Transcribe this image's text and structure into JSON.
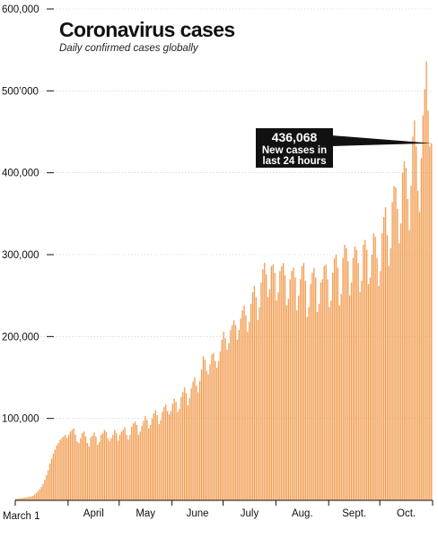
{
  "chart_data": {
    "type": "bar",
    "title": "Coronavirus cases",
    "subtitle": "Daily confirmed cases globally",
    "start_label": "March 1",
    "month_labels": [
      "April",
      "May",
      "June",
      "July",
      "Aug.",
      "Sept.",
      "Oct."
    ],
    "y_ticks": [
      {
        "value": 100000,
        "label": "100,000"
      },
      {
        "value": 200000,
        "label": "200,000"
      },
      {
        "value": 300000,
        "label": "300,000"
      },
      {
        "value": 400000,
        "label": "400,000"
      },
      {
        "value": 500000,
        "label": "500’000"
      },
      {
        "value": 600000,
        "label": "600,000"
      }
    ],
    "ylim": [
      0,
      600000
    ],
    "bar_color": "#f2a057",
    "callout": {
      "value": "436,068",
      "line1": "New cases in",
      "line2": "last 24 hours",
      "point_value": 436068
    },
    "values": [
      2000,
      2200,
      2500,
      2400,
      3000,
      3200,
      3600,
      3900,
      4500,
      4800,
      5500,
      7000,
      9000,
      11000,
      13500,
      16500,
      20000,
      25000,
      31000,
      37000,
      45000,
      51000,
      57000,
      62000,
      67000,
      70000,
      74000,
      76000,
      78000,
      80000,
      76000,
      80000,
      84000,
      86000,
      88000,
      80000,
      72000,
      70000,
      76000,
      82000,
      84000,
      78000,
      70000,
      66000,
      77000,
      79000,
      83000,
      78000,
      68000,
      71000,
      80000,
      82000,
      86000,
      84000,
      76000,
      72000,
      76000,
      80000,
      86000,
      82000,
      73000,
      80000,
      84000,
      86000,
      89000,
      80000,
      74000,
      80000,
      90000,
      94000,
      96000,
      92000,
      80000,
      84000,
      91000,
      97000,
      103000,
      98000,
      88000,
      92000,
      100000,
      106000,
      110000,
      104000,
      93000,
      98000,
      108000,
      114000,
      117000,
      109000,
      105000,
      109000,
      118000,
      124000,
      120000,
      108000,
      112000,
      126000,
      132000,
      138000,
      131000,
      116000,
      125000,
      137000,
      145000,
      150000,
      140000,
      132000,
      146000,
      160000,
      176000,
      172000,
      158000,
      154000,
      166000,
      178000,
      180000,
      170000,
      162000,
      170000,
      182000,
      196000,
      206000,
      198000,
      184000,
      192000,
      208000,
      214000,
      220000,
      214000,
      196000,
      208000,
      222000,
      232000,
      238000,
      226000,
      206000,
      218000,
      240000,
      254000,
      262000,
      248000,
      220000,
      236000,
      266000,
      282000,
      290000,
      276000,
      248000,
      258000,
      286000,
      288000,
      278000,
      244000,
      254000,
      280000,
      286000,
      290000,
      275000,
      238000,
      246000,
      270000,
      280000,
      284000,
      272000,
      232000,
      250000,
      270000,
      286000,
      290000,
      268000,
      224000,
      236000,
      264000,
      278000,
      284000,
      272000,
      230000,
      240000,
      266000,
      270000,
      286000,
      288000,
      270000,
      236000,
      244000,
      278000,
      296000,
      300000,
      284000,
      238000,
      252000,
      296000,
      312000,
      308000,
      292000,
      250000,
      266000,
      296000,
      310000,
      306000,
      290000,
      254000,
      268000,
      312000,
      318000,
      306000,
      264000,
      272000,
      300000,
      326000,
      322000,
      296000,
      262000,
      280000,
      326000,
      346000,
      358000,
      324000,
      286000,
      308000,
      364000,
      384000,
      382000,
      356000,
      314000,
      338000,
      400000,
      414000,
      406000,
      368000,
      330000,
      384000,
      444000,
      464000,
      432000,
      378000,
      352000,
      418000,
      470000,
      502000,
      536000,
      476000,
      432000,
      436068
    ]
  }
}
